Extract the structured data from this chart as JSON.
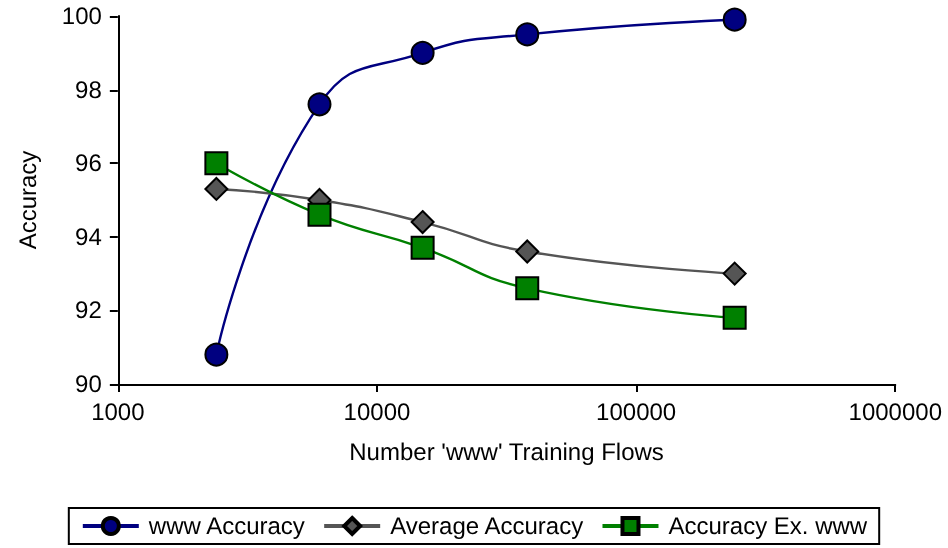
{
  "chart_data": {
    "type": "line",
    "xlabel": "Number 'www' Training Flows",
    "ylabel": "Accuracy",
    "log": "x",
    "xlim": [
      1000,
      1000000
    ],
    "xticks": [
      1000,
      10000,
      100000,
      1000000
    ],
    "ylim": [
      90,
      100
    ],
    "yticks": [
      90,
      92,
      94,
      96,
      98,
      100
    ],
    "grid": false,
    "legend": "bottom",
    "series": [
      {
        "name": "www Accuracy",
        "color": "#000080",
        "marker": "circle",
        "x": [
          2400,
          6000,
          15000,
          38000,
          240000
        ],
        "values": [
          90.8,
          97.6,
          99.0,
          99.5,
          99.9
        ]
      },
      {
        "name": "Average Accuracy",
        "color": "#555555",
        "marker": "diamond",
        "x": [
          2400,
          6000,
          15000,
          38000,
          240000
        ],
        "values": [
          95.3,
          95.0,
          94.4,
          93.6,
          93.0
        ]
      },
      {
        "name": "Accuracy Ex. www",
        "color": "#008000",
        "marker": "square",
        "x": [
          2400,
          6000,
          15000,
          38000,
          240000
        ],
        "values": [
          96.0,
          94.6,
          93.7,
          92.6,
          91.8
        ]
      }
    ]
  }
}
